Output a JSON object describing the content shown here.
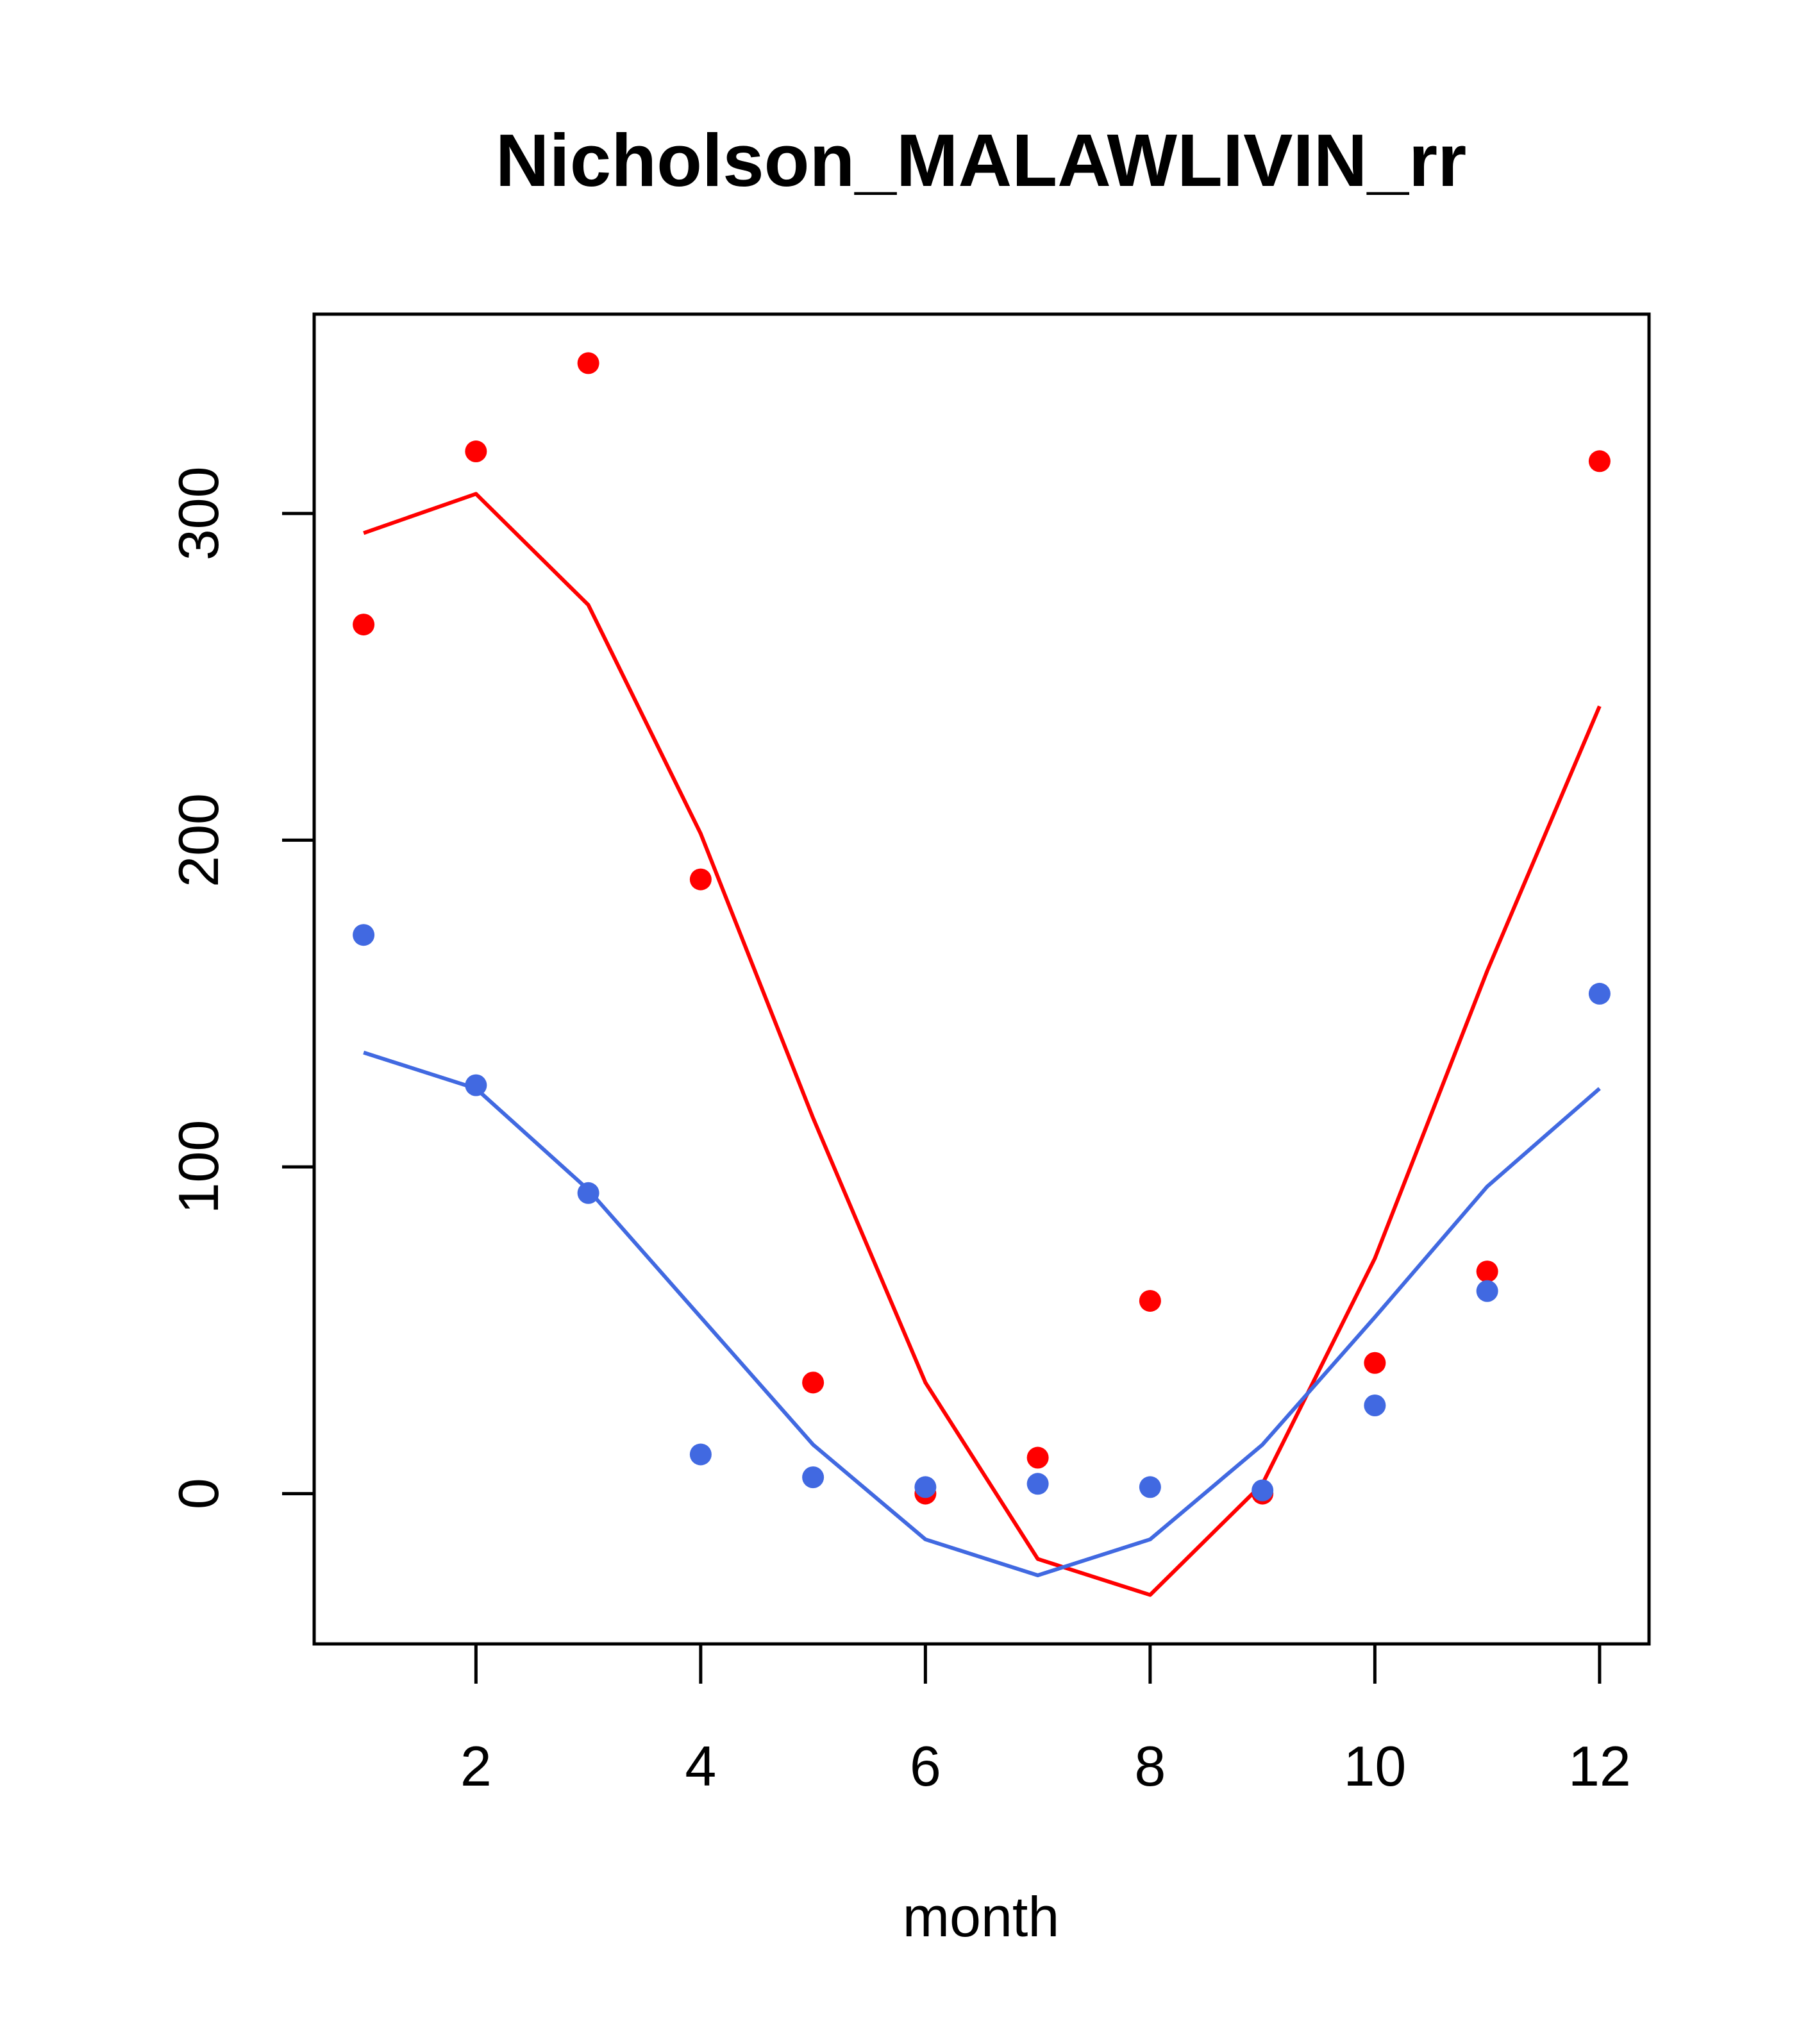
{
  "chart_data": {
    "type": "line",
    "title": "Nicholson_MALAWLIVIN_rr",
    "xlabel": "month",
    "ylabel": "",
    "xlim": [
      0.56,
      12.44
    ],
    "ylim": [
      -46,
      361
    ],
    "xticks": [
      2,
      4,
      6,
      8,
      10,
      12
    ],
    "yticks": [
      0,
      100,
      200,
      300
    ],
    "grid": false,
    "legend": "none",
    "series": [
      {
        "name": "red-observed",
        "kind": "points",
        "color": "#ff0000",
        "x": [
          1,
          2,
          3,
          4,
          5,
          6,
          7,
          8,
          9,
          10,
          11,
          12
        ],
        "y": [
          266,
          319,
          346,
          188,
          34,
          0,
          11,
          59,
          0,
          40,
          68,
          316
        ]
      },
      {
        "name": "red-fit",
        "kind": "line",
        "color": "#ff0000",
        "x": [
          1,
          2,
          3,
          4,
          5,
          6,
          7,
          8,
          9,
          10,
          11,
          12
        ],
        "y": [
          294,
          306,
          272,
          202,
          115,
          34,
          -20,
          -31,
          3,
          72,
          160,
          241
        ]
      },
      {
        "name": "blue-observed",
        "kind": "points",
        "color": "#4169e1",
        "x": [
          1,
          2,
          3,
          4,
          5,
          6,
          7,
          8,
          9,
          10,
          11,
          12
        ],
        "y": [
          171,
          125,
          92,
          12,
          5,
          2,
          3,
          2,
          1,
          27,
          62,
          153
        ]
      },
      {
        "name": "blue-fit",
        "kind": "line",
        "color": "#4169e1",
        "x": [
          1,
          2,
          3,
          4,
          5,
          6,
          7,
          8,
          9,
          10,
          11,
          12
        ],
        "y": [
          135,
          124,
          93,
          54,
          15,
          -14,
          -25,
          -14,
          15,
          54,
          94,
          124
        ]
      }
    ]
  }
}
